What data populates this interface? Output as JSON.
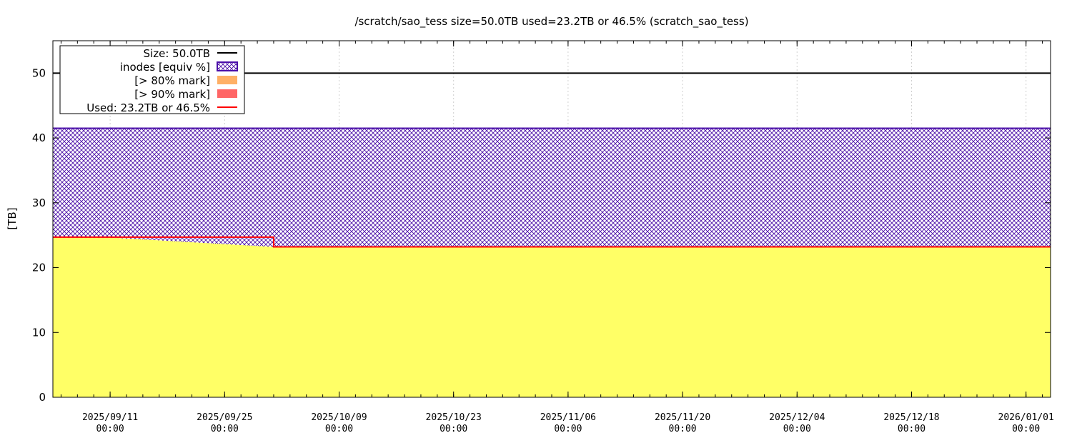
{
  "chart_data": {
    "type": "area",
    "title": "/scratch/sao_tess size=50.0TB used=23.2TB or 46.5% (scratch_sao_tess)",
    "xlabel": "",
    "ylabel": "[TB]",
    "xlim": [
      "2025-09-04 00:00",
      "2026-01-04 00:00"
    ],
    "ylim": [
      0,
      55
    ],
    "yticks": [
      0,
      10,
      20,
      30,
      40,
      50
    ],
    "xticks": [
      {
        "date": "2025-09-11 00:00",
        "label_date": "2025/09/11",
        "label_time": "00:00"
      },
      {
        "date": "2025-09-25 00:00",
        "label_date": "2025/09/25",
        "label_time": "00:00"
      },
      {
        "date": "2025-10-09 00:00",
        "label_date": "2025/10/09",
        "label_time": "00:00"
      },
      {
        "date": "2025-10-23 00:00",
        "label_date": "2025/10/23",
        "label_time": "00:00"
      },
      {
        "date": "2025-11-06 00:00",
        "label_date": "2025/11/06",
        "label_time": "00:00"
      },
      {
        "date": "2025-11-20 00:00",
        "label_date": "2025/11/20",
        "label_time": "00:00"
      },
      {
        "date": "2025-12-04 00:00",
        "label_date": "2025/12/04",
        "label_time": "00:00"
      },
      {
        "date": "2025-12-18 00:00",
        "label_date": "2025/12/18",
        "label_time": "00:00"
      },
      {
        "date": "2026-01-01 00:00",
        "label_date": "2026/01/01",
        "label_time": "00:00"
      }
    ],
    "grid": true,
    "legend_position": "top-left",
    "size_line": {
      "label": "Size: 50.0TB",
      "value": 50.0,
      "color": "#000000"
    },
    "inodes": {
      "label": "inodes [equiv %]",
      "color": "#4b0fa8",
      "x": [
        "2025-09-04 00:00",
        "2025-09-10 00:00",
        "2025-10-01 00:00",
        "2026-01-04 00:00"
      ],
      "y": [
        41.5,
        41.5,
        41.5,
        41.5
      ]
    },
    "mark80": {
      "label": "[> 80% mark]",
      "color": "#ffb066"
    },
    "mark90": {
      "label": "[> 90% mark]",
      "color": "#ff6666"
    },
    "used": {
      "label": "Used: 23.2TB or 46.5%",
      "line_color": "#ff0000",
      "fill_color": "#ffff66",
      "x": [
        "2025-09-04 00:00",
        "2025-09-10 00:00",
        "2025-10-01 00:00",
        "2025-10-01 00:00",
        "2026-01-04 00:00"
      ],
      "y": [
        24.7,
        24.7,
        24.7,
        23.2,
        23.2
      ]
    },
    "used_fill": {
      "x": [
        "2025-09-04 00:00",
        "2025-09-10 00:00",
        "2025-10-01 00:00",
        "2026-01-04 00:00"
      ],
      "y": [
        24.7,
        24.7,
        23.2,
        23.2
      ]
    }
  }
}
